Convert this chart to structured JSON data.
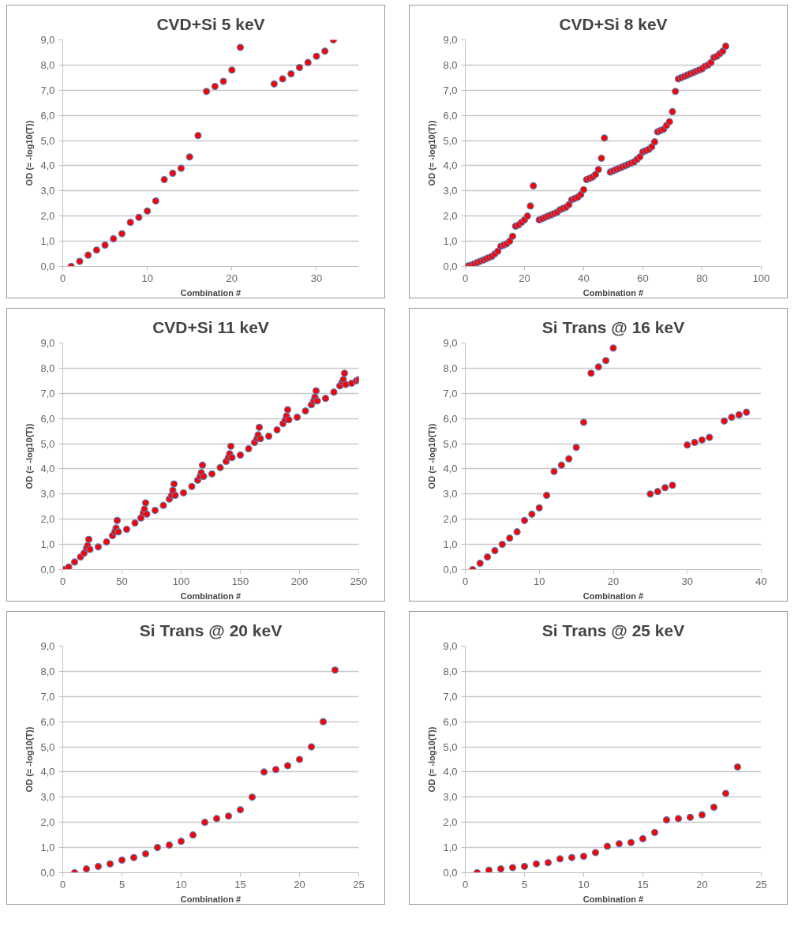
{
  "chart_data": [
    {
      "type": "scatter",
      "title": "CVD+Si 5 keV",
      "xlabel": "Combination #",
      "ylabel": "OD (= -log10(T))",
      "marker": "circle",
      "grid": "y",
      "xlim": [
        0,
        35
      ],
      "xticks": [
        0,
        10,
        20,
        30
      ],
      "ylim": [
        0,
        9
      ],
      "yticks": [
        {
          "value": 0,
          "label": "0,0"
        },
        {
          "value": 1,
          "label": "1,0"
        },
        {
          "value": 2,
          "label": "2,0"
        },
        {
          "value": 3,
          "label": "3,0"
        },
        {
          "value": 4,
          "label": "4,0"
        },
        {
          "value": 5,
          "label": "5,0"
        },
        {
          "value": 6,
          "label": "6,0"
        },
        {
          "value": 7,
          "label": "7,0"
        },
        {
          "value": 8,
          "label": "8,0"
        },
        {
          "value": 9,
          "label": "9,0"
        }
      ],
      "series": [
        {
          "color": "#ff0000",
          "x": [
            1,
            2,
            3,
            4,
            5,
            6,
            7,
            8,
            9,
            10,
            11,
            12,
            13,
            14,
            15,
            16,
            17,
            18,
            19,
            20,
            21,
            25,
            26,
            27,
            28,
            29,
            30,
            31,
            32
          ],
          "values": [
            0.0,
            0.2,
            0.45,
            0.65,
            0.85,
            1.1,
            1.3,
            1.75,
            1.95,
            2.2,
            2.6,
            3.45,
            3.7,
            3.9,
            4.35,
            5.2,
            6.95,
            7.15,
            7.35,
            7.8,
            8.7,
            7.25,
            7.45,
            7.65,
            7.9,
            8.1,
            8.35,
            8.55,
            9.0
          ]
        }
      ]
    },
    {
      "type": "scatter",
      "title": "CVD+Si 8 keV",
      "xlabel": "Combination #",
      "ylabel": "OD (= -log10(T))",
      "marker": "circle",
      "grid": "y",
      "xlim": [
        0,
        100
      ],
      "xticks": [
        0,
        20,
        40,
        60,
        80,
        100
      ],
      "ylim": [
        0,
        9
      ],
      "yticks": [
        {
          "value": 0,
          "label": "0,0"
        },
        {
          "value": 1,
          "label": "1,0"
        },
        {
          "value": 2,
          "label": "2,0"
        },
        {
          "value": 3,
          "label": "3,0"
        },
        {
          "value": 4,
          "label": "4,0"
        },
        {
          "value": 5,
          "label": "5,0"
        },
        {
          "value": 6,
          "label": "6,0"
        },
        {
          "value": 7,
          "label": "7,0"
        },
        {
          "value": 8,
          "label": "8,0"
        },
        {
          "value": 9,
          "label": "9,0"
        }
      ],
      "series": [
        {
          "color": "#ff0000",
          "x": [
            1,
            2,
            3,
            4,
            5,
            6,
            7,
            8,
            9,
            10,
            11,
            12,
            13,
            14,
            15,
            16,
            17,
            18,
            19,
            20,
            21,
            22,
            23,
            25,
            26,
            27,
            28,
            29,
            30,
            31,
            32,
            33,
            34,
            35,
            36,
            37,
            38,
            39,
            40,
            41,
            42,
            43,
            44,
            45,
            46,
            47,
            49,
            50,
            51,
            52,
            53,
            54,
            55,
            56,
            57,
            58,
            59,
            60,
            61,
            62,
            63,
            64,
            65,
            66,
            67,
            68,
            69,
            70,
            71,
            72,
            73,
            74,
            75,
            76,
            77,
            78,
            79,
            80,
            81,
            82,
            83,
            84,
            85,
            86,
            87,
            88
          ],
          "values": [
            0.02,
            0.05,
            0.1,
            0.15,
            0.2,
            0.25,
            0.3,
            0.35,
            0.4,
            0.5,
            0.6,
            0.8,
            0.85,
            0.9,
            1.0,
            1.2,
            1.6,
            1.65,
            1.75,
            1.85,
            2.0,
            2.4,
            3.2,
            1.85,
            1.9,
            1.95,
            2.0,
            2.05,
            2.1,
            2.15,
            2.25,
            2.3,
            2.35,
            2.45,
            2.65,
            2.7,
            2.75,
            2.85,
            3.05,
            3.45,
            3.5,
            3.55,
            3.65,
            3.85,
            4.3,
            5.1,
            3.75,
            3.8,
            3.85,
            3.9,
            3.95,
            4.0,
            4.05,
            4.1,
            4.15,
            4.25,
            4.35,
            4.55,
            4.6,
            4.65,
            4.75,
            4.95,
            5.35,
            5.4,
            5.45,
            5.6,
            5.75,
            6.15,
            6.95,
            7.45,
            7.5,
            7.55,
            7.6,
            7.65,
            7.7,
            7.75,
            7.8,
            7.85,
            7.95,
            8.0,
            8.1,
            8.3,
            8.35,
            8.45,
            8.55,
            8.75
          ]
        }
      ]
    },
    {
      "type": "scatter",
      "title": "CVD+Si 11 keV",
      "xlabel": "Combination #",
      "ylabel": "OD (= -log10(T))",
      "marker": "circle",
      "grid": "y",
      "xlim": [
        0,
        250
      ],
      "xticks": [
        0,
        50,
        100,
        150,
        200,
        250
      ],
      "ylim": [
        0,
        9
      ],
      "yticks": [
        {
          "value": 0,
          "label": "0,0"
        },
        {
          "value": 1,
          "label": "1,0"
        },
        {
          "value": 2,
          "label": "2,0"
        },
        {
          "value": 3,
          "label": "3,0"
        },
        {
          "value": 4,
          "label": "4,0"
        },
        {
          "value": 5,
          "label": "5,0"
        },
        {
          "value": 6,
          "label": "6,0"
        },
        {
          "value": 7,
          "label": "7,0"
        },
        {
          "value": 8,
          "label": "8,0"
        },
        {
          "value": 9,
          "label": "9,0"
        }
      ],
      "series": [
        {
          "color": "#ff0000",
          "x": [
            1,
            5,
            10,
            15,
            18,
            20,
            21,
            22,
            23,
            30,
            37,
            42,
            44,
            45,
            46,
            47,
            54,
            61,
            66,
            68,
            69,
            70,
            71,
            78,
            85,
            90,
            92,
            93,
            94,
            95,
            102,
            109,
            114,
            116,
            117,
            118,
            119,
            126,
            133,
            138,
            140,
            141,
            142,
            143,
            150,
            157,
            162,
            164,
            165,
            166,
            167,
            174,
            181,
            186,
            188,
            189,
            190,
            191,
            198,
            205,
            210,
            212,
            213,
            214,
            215,
            222,
            229,
            234,
            236,
            237,
            238,
            239,
            244,
            248,
            250
          ],
          "values": [
            0.0,
            0.1,
            0.3,
            0.5,
            0.65,
            0.85,
            0.95,
            1.2,
            0.8,
            0.9,
            1.1,
            1.35,
            1.5,
            1.65,
            1.95,
            1.5,
            1.6,
            1.85,
            2.05,
            2.25,
            2.4,
            2.65,
            2.2,
            2.35,
            2.55,
            2.8,
            2.95,
            3.15,
            3.4,
            2.95,
            3.05,
            3.3,
            3.55,
            3.7,
            3.85,
            4.15,
            3.7,
            3.8,
            4.05,
            4.3,
            4.45,
            4.6,
            4.9,
            4.45,
            4.55,
            4.8,
            5.05,
            5.2,
            5.35,
            5.65,
            5.2,
            5.3,
            5.55,
            5.8,
            5.95,
            6.1,
            6.35,
            5.95,
            6.05,
            6.3,
            6.55,
            6.7,
            6.85,
            7.1,
            6.7,
            6.8,
            7.05,
            7.3,
            7.45,
            7.55,
            7.8,
            7.35,
            7.4,
            7.5,
            7.55
          ]
        }
      ]
    },
    {
      "type": "scatter",
      "title": "Si Trans @ 16 keV",
      "xlabel": "Combination #",
      "ylabel": "OD (= -log10(T))",
      "marker": "circle",
      "grid": "y",
      "xlim": [
        0,
        40
      ],
      "xticks": [
        0,
        10,
        20,
        30,
        40
      ],
      "ylim": [
        0,
        9
      ],
      "yticks": [
        {
          "value": 0,
          "label": "0,0"
        },
        {
          "value": 1,
          "label": "1,0"
        },
        {
          "value": 2,
          "label": "2,0"
        },
        {
          "value": 3,
          "label": "3,0"
        },
        {
          "value": 4,
          "label": "4,0"
        },
        {
          "value": 5,
          "label": "5,0"
        },
        {
          "value": 6,
          "label": "6,0"
        },
        {
          "value": 7,
          "label": "7,0"
        },
        {
          "value": 8,
          "label": "8,0"
        },
        {
          "value": 9,
          "label": "9,0"
        }
      ],
      "series": [
        {
          "color": "#ff0000",
          "x": [
            1,
            2,
            3,
            4,
            5,
            6,
            7,
            8,
            9,
            10,
            11,
            12,
            13,
            14,
            15,
            16,
            17,
            18,
            19,
            20,
            25,
            26,
            27,
            28,
            30,
            31,
            32,
            33,
            35,
            36,
            37,
            38
          ],
          "values": [
            0.0,
            0.25,
            0.5,
            0.75,
            1.0,
            1.25,
            1.5,
            1.95,
            2.2,
            2.45,
            2.95,
            3.9,
            4.15,
            4.4,
            4.85,
            5.85,
            7.8,
            8.05,
            8.3,
            8.8,
            3.0,
            3.1,
            3.25,
            3.35,
            4.95,
            5.05,
            5.15,
            5.25,
            5.9,
            6.05,
            6.15,
            6.25
          ]
        }
      ]
    },
    {
      "type": "scatter",
      "title": "Si Trans @ 20 keV",
      "xlabel": "Combination #",
      "ylabel": "OD (= -log10(T))",
      "marker": "circle",
      "grid": "y",
      "xlim": [
        0,
        25
      ],
      "xticks": [
        0,
        5,
        10,
        15,
        20,
        25
      ],
      "ylim": [
        0,
        9
      ],
      "yticks": [
        {
          "value": 0,
          "label": "0,0"
        },
        {
          "value": 1,
          "label": "1,0"
        },
        {
          "value": 2,
          "label": "2,0"
        },
        {
          "value": 3,
          "label": "3,0"
        },
        {
          "value": 4,
          "label": "4,0"
        },
        {
          "value": 5,
          "label": "5,0"
        },
        {
          "value": 6,
          "label": "6,0"
        },
        {
          "value": 7,
          "label": "7,0"
        },
        {
          "value": 8,
          "label": "8,0"
        },
        {
          "value": 9,
          "label": "9,0"
        }
      ],
      "series": [
        {
          "color": "#ff0000",
          "x": [
            1,
            2,
            3,
            4,
            5,
            6,
            7,
            8,
            9,
            10,
            11,
            12,
            13,
            14,
            15,
            16,
            17,
            18,
            19,
            20,
            21,
            22,
            23
          ],
          "values": [
            0.0,
            0.15,
            0.25,
            0.35,
            0.5,
            0.6,
            0.75,
            1.0,
            1.1,
            1.25,
            1.5,
            2.0,
            2.15,
            2.25,
            2.5,
            3.0,
            4.0,
            4.1,
            4.25,
            4.5,
            5.0,
            6.0,
            8.05
          ]
        }
      ]
    },
    {
      "type": "scatter",
      "title": "Si Trans @ 25 keV",
      "xlabel": "Combination #",
      "ylabel": "OD (= -log10(T))",
      "marker": "circle",
      "grid": "y",
      "xlim": [
        0,
        25
      ],
      "xticks": [
        0,
        5,
        10,
        15,
        20,
        25
      ],
      "ylim": [
        0,
        9
      ],
      "yticks": [
        {
          "value": 0,
          "label": "0,0"
        },
        {
          "value": 1,
          "label": "1,0"
        },
        {
          "value": 2,
          "label": "2,0"
        },
        {
          "value": 3,
          "label": "3,0"
        },
        {
          "value": 4,
          "label": "4,0"
        },
        {
          "value": 5,
          "label": "5,0"
        },
        {
          "value": 6,
          "label": "6,0"
        },
        {
          "value": 7,
          "label": "7,0"
        },
        {
          "value": 8,
          "label": "8,0"
        },
        {
          "value": 9,
          "label": "9,0"
        }
      ],
      "series": [
        {
          "color": "#ff0000",
          "x": [
            1,
            2,
            3,
            4,
            5,
            6,
            7,
            8,
            9,
            10,
            11,
            12,
            13,
            14,
            15,
            16,
            17,
            18,
            19,
            20,
            21,
            22,
            23
          ],
          "values": [
            0.0,
            0.1,
            0.15,
            0.2,
            0.25,
            0.35,
            0.4,
            0.55,
            0.6,
            0.65,
            0.8,
            1.05,
            1.15,
            1.2,
            1.35,
            1.6,
            2.1,
            2.15,
            2.2,
            2.3,
            2.6,
            3.15,
            4.2
          ]
        }
      ]
    }
  ]
}
